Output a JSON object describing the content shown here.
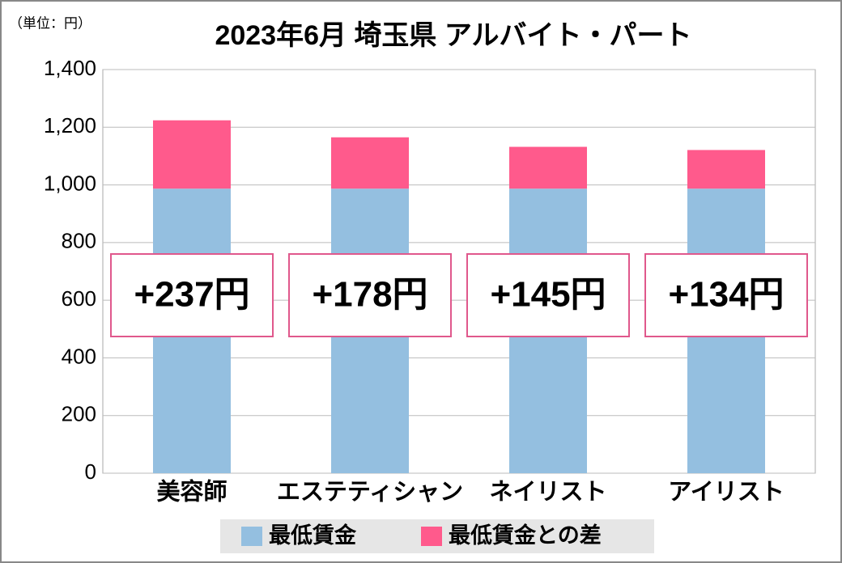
{
  "chart_data": {
    "type": "stacked_bar",
    "title": "2023年6月 埼玉県 アルバイト・パート",
    "unit": "（単位：円）",
    "categories": [
      "美容師",
      "エステティシャン",
      "ネイリスト",
      "アイリスト"
    ],
    "series": [
      {
        "name": "最低賃金",
        "color": "#94bfe0",
        "values": [
          987,
          987,
          987,
          987
        ]
      },
      {
        "name": "最低賃金との差",
        "color": "#ff5a8c",
        "values": [
          237,
          178,
          145,
          134
        ],
        "value_labels": [
          "+237円",
          "+178円",
          "+145円",
          "+134円"
        ]
      }
    ],
    "ylim": [
      0,
      1400
    ],
    "yticks": [
      0,
      200,
      400,
      600,
      800,
      {
        "value": 1000,
        "label": "1,000"
      },
      {
        "value": 1200,
        "label": "1,200"
      },
      {
        "value": 1400,
        "label": "1,400"
      }
    ],
    "grid": true,
    "legend": "bottom"
  }
}
